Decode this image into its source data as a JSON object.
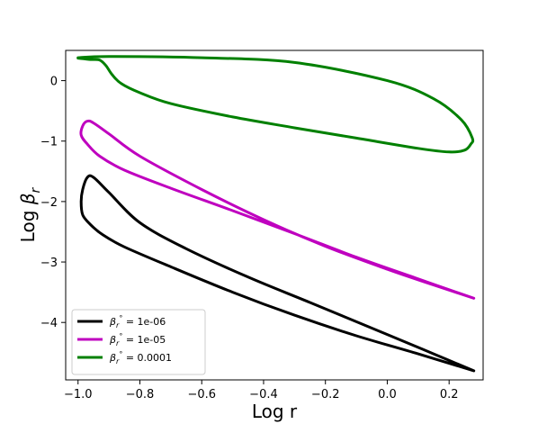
{
  "chart_data": {
    "type": "line",
    "title": "",
    "xlabel": "Log r",
    "ylabel": "Log β_r",
    "xlim": [
      -1.04,
      0.31
    ],
    "ylim": [
      -4.95,
      0.5
    ],
    "xticks": [
      -1.0,
      -0.8,
      -0.6,
      -0.4,
      -0.2,
      0.0,
      0.2
    ],
    "xtick_labels": [
      "−1.0",
      "−0.8",
      "−0.6",
      "−0.4",
      "−0.2",
      "0.0",
      "0.2"
    ],
    "yticks": [
      0,
      -1,
      -2,
      -3,
      -4
    ],
    "ytick_labels": [
      "0",
      "−1",
      "−2",
      "−3",
      "−4"
    ],
    "grid": false,
    "legend_position": "lower-left",
    "series": [
      {
        "name": "β_r° = 1e-06",
        "legend_value": "1e-06",
        "color": "#000000",
        "x": [
          0.28,
          0.1,
          -0.1,
          -0.3,
          -0.5,
          -0.7,
          -0.85,
          -0.92,
          -0.96,
          -0.985,
          -0.99,
          -0.985,
          -0.97,
          -0.95,
          -0.9,
          -0.8,
          -0.65,
          -0.45,
          -0.25,
          0.0,
          0.15,
          0.28
        ],
        "y": [
          -4.8,
          -4.52,
          -4.22,
          -3.88,
          -3.5,
          -3.08,
          -2.75,
          -2.55,
          -2.38,
          -2.22,
          -2.0,
          -1.8,
          -1.6,
          -1.6,
          -1.85,
          -2.35,
          -2.78,
          -3.25,
          -3.67,
          -4.2,
          -4.52,
          -4.8
        ]
      },
      {
        "name": "β_r° = 1e-05",
        "legend_value": "1e-05",
        "color": "#bf00bf",
        "x": [
          0.28,
          0.1,
          -0.1,
          -0.3,
          -0.5,
          -0.7,
          -0.85,
          -0.93,
          -0.97,
          -0.99,
          -0.985,
          -0.97,
          -0.95,
          -0.9,
          -0.8,
          -0.6,
          -0.4,
          -0.2,
          0.0,
          0.15,
          0.28
        ],
        "y": [
          -3.6,
          -3.28,
          -2.92,
          -2.53,
          -2.15,
          -1.78,
          -1.48,
          -1.25,
          -1.05,
          -0.9,
          -0.75,
          -0.67,
          -0.7,
          -0.88,
          -1.25,
          -1.8,
          -2.3,
          -2.74,
          -3.12,
          -3.38,
          -3.6
        ]
      },
      {
        "name": "β_r° = 0.0001",
        "legend_value": "0.0001",
        "color": "#008000",
        "x": [
          -1.0,
          -0.9,
          -0.6,
          -0.3,
          0.0,
          0.15,
          0.24,
          0.275,
          0.27,
          0.25,
          0.2,
          0.1,
          -0.1,
          -0.3,
          -0.5,
          -0.7,
          -0.8,
          -0.86,
          -0.89,
          -0.91,
          -0.93,
          -0.96,
          -1.0
        ],
        "y": [
          0.38,
          0.4,
          0.38,
          0.3,
          0.0,
          -0.3,
          -0.65,
          -0.95,
          -1.05,
          -1.15,
          -1.18,
          -1.12,
          -0.95,
          -0.78,
          -0.6,
          -0.38,
          -0.2,
          -0.05,
          0.1,
          0.25,
          0.34,
          0.35,
          0.37
        ]
      }
    ]
  }
}
